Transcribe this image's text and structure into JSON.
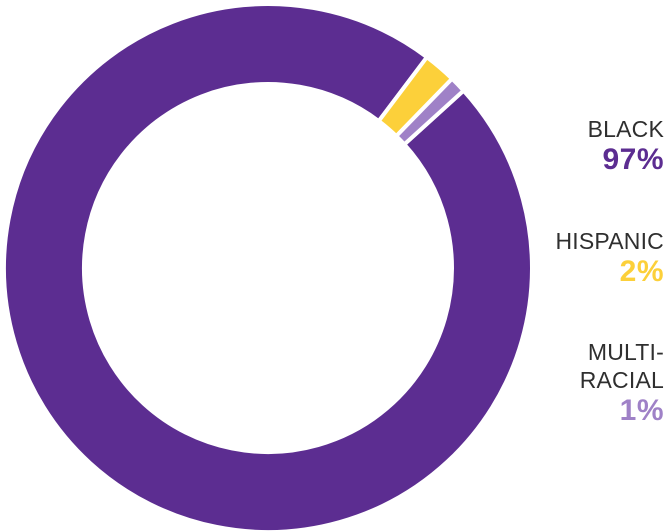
{
  "chart_data": {
    "type": "pie",
    "style": "donut",
    "title": "",
    "legend_position": "right",
    "categories": [
      "BLACK",
      "HISPANIC",
      "MULTI-\nRACIAL"
    ],
    "values": [
      97,
      2,
      1
    ],
    "value_labels": [
      "97%",
      "2%",
      "1%"
    ],
    "colors": [
      "#5c2d91",
      "#fcd03a",
      "#9f81c7"
    ]
  }
}
